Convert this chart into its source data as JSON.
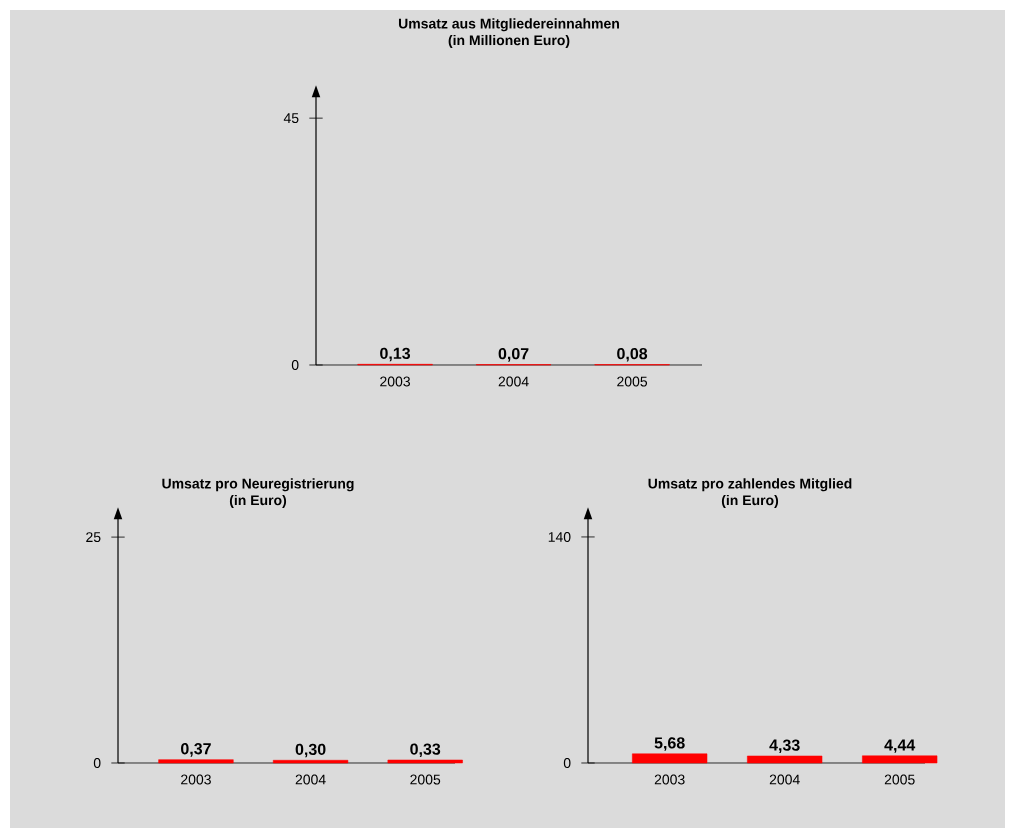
{
  "chart_data": [
    {
      "type": "bar",
      "title": "Umsatz aus Mitgliedereinnahmen",
      "subtitle": "(in Millionen Euro)",
      "categories": [
        "2003",
        "2004",
        "2005"
      ],
      "values": [
        0.13,
        0.07,
        0.08
      ],
      "value_labels": [
        "0,13",
        "0,07",
        "0,08"
      ],
      "color": "#ff0000",
      "ylim": [
        0,
        50.5
      ],
      "yticks": [
        0,
        45
      ]
    },
    {
      "type": "bar",
      "title": "Umsatz pro Neuregistrierung",
      "subtitle": "(in Euro)",
      "categories": [
        "2003",
        "2004",
        "2005"
      ],
      "values": [
        0.37,
        0.3,
        0.33
      ],
      "value_labels": [
        "0,37",
        "0,30",
        "0,33"
      ],
      "color": "#ff0000",
      "ylim": [
        0,
        28
      ],
      "yticks": [
        0,
        25
      ]
    },
    {
      "type": "bar",
      "title": "Umsatz pro zahlendes Mitglied",
      "subtitle": "(in Euro)",
      "categories": [
        "2003",
        "2004",
        "2005"
      ],
      "values": [
        5.68,
        4.33,
        4.44
      ],
      "value_labels": [
        "5,68",
        "4,33",
        "4,44"
      ],
      "color": "#ff0000",
      "ylim": [
        0,
        156.7
      ],
      "yticks": [
        0,
        140
      ]
    }
  ]
}
